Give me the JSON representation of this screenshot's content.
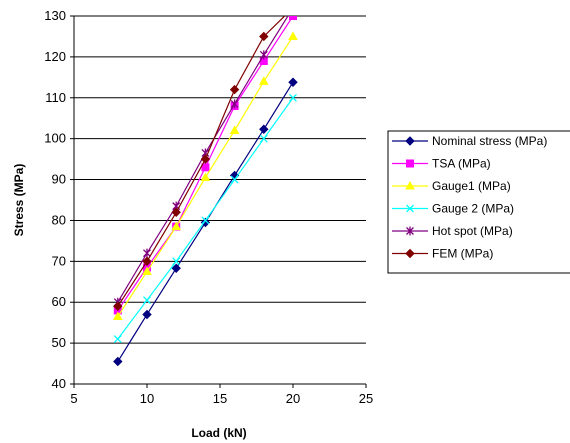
{
  "chart_data": {
    "type": "line",
    "title": "",
    "xlabel": "Load (kN)",
    "ylabel": "Stress (MPa)",
    "xlim": [
      5,
      25
    ],
    "ylim": [
      40,
      130
    ],
    "xticks": [
      5,
      10,
      15,
      20,
      25
    ],
    "yticks": [
      40,
      50,
      60,
      70,
      80,
      90,
      100,
      110,
      120,
      130
    ],
    "grid": "horizontal",
    "legend_position": "right",
    "series": [
      {
        "name": "Nominal stress (MPa)",
        "color": "#000080",
        "marker": "diamond",
        "x": [
          8,
          10,
          12,
          14,
          16,
          18,
          20
        ],
        "y": [
          45.5,
          57,
          68.3,
          79.5,
          91,
          102.3,
          113.8
        ]
      },
      {
        "name": "TSA (MPa)",
        "color": "#FF00FF",
        "marker": "square",
        "x": [
          8,
          10,
          12,
          14,
          16,
          18,
          20
        ],
        "y": [
          58,
          68.5,
          78.5,
          93,
          108,
          119,
          130
        ]
      },
      {
        "name": "Gauge1 (MPa)",
        "color": "#FFFF00",
        "marker": "triangle",
        "x": [
          8,
          10,
          12,
          14,
          16,
          18,
          20
        ],
        "y": [
          56.5,
          67.5,
          78.5,
          90.5,
          102,
          114,
          125
        ]
      },
      {
        "name": "Gauge 2 (MPa)",
        "color": "#00FFFF",
        "marker": "x",
        "x": [
          8,
          10,
          12,
          14,
          16,
          18,
          20
        ],
        "y": [
          51,
          60.5,
          70,
          80,
          90,
          100,
          110
        ]
      },
      {
        "name": "Hot spot (MPa)",
        "color": "#800080",
        "marker": "star",
        "x": [
          8,
          10,
          12,
          14,
          16,
          18,
          20
        ],
        "y": [
          60,
          72,
          83.5,
          96.5,
          108.5,
          120.5,
          132
        ]
      },
      {
        "name": "FEM (MPa)",
        "color": "#800000",
        "marker": "diamond",
        "x": [
          8,
          10,
          12,
          14,
          16,
          18,
          20
        ],
        "y": [
          59,
          70,
          82,
          95,
          112,
          125,
          132
        ]
      }
    ]
  }
}
